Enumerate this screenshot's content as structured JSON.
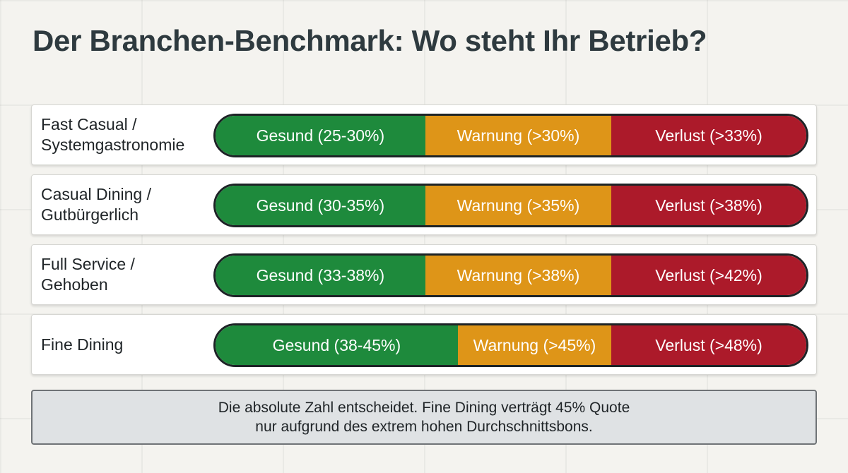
{
  "title": "Der Branchen-Benchmark: Wo steht Ihr Betrieb?",
  "colors": {
    "healthy": "#1e8a3c",
    "warning": "#de9518",
    "loss": "#ac1a2a"
  },
  "rows": [
    {
      "label": "Fast Casual /\nSystemgastronomie",
      "segments": [
        {
          "label": "Gesund (25-30%)",
          "status": "healthy",
          "share": 0.355
        },
        {
          "label": "Warnung (>30%)",
          "status": "warning",
          "share": 0.315
        },
        {
          "label": "Verlust (>33%)",
          "status": "loss",
          "share": 0.33
        }
      ]
    },
    {
      "label": "Casual Dining /\nGutbürgerlich",
      "segments": [
        {
          "label": "Gesund (30-35%)",
          "status": "healthy",
          "share": 0.355
        },
        {
          "label": "Warnung (>35%)",
          "status": "warning",
          "share": 0.315
        },
        {
          "label": "Verlust (>38%)",
          "status": "loss",
          "share": 0.33
        }
      ]
    },
    {
      "label": "Full Service /\nGehoben",
      "segments": [
        {
          "label": "Gesund (33-38%)",
          "status": "healthy",
          "share": 0.355
        },
        {
          "label": "Warnung (>38%)",
          "status": "warning",
          "share": 0.315
        },
        {
          "label": "Verlust (>42%)",
          "status": "loss",
          "share": 0.33
        }
      ]
    },
    {
      "label": "Fine Dining",
      "segments": [
        {
          "label": "Gesund (38-45%)",
          "status": "healthy",
          "share": 0.41
        },
        {
          "label": "Warnung (>45%)",
          "status": "warning",
          "share": 0.26
        },
        {
          "label": "Verlust (>48%)",
          "status": "loss",
          "share": 0.33
        }
      ]
    }
  ],
  "note": {
    "line1": "Die absolute Zahl entscheidet. Fine Dining verträgt 45% Quote",
    "line2": "nur aufgrund des extrem hohen Durchschnittsbons."
  }
}
